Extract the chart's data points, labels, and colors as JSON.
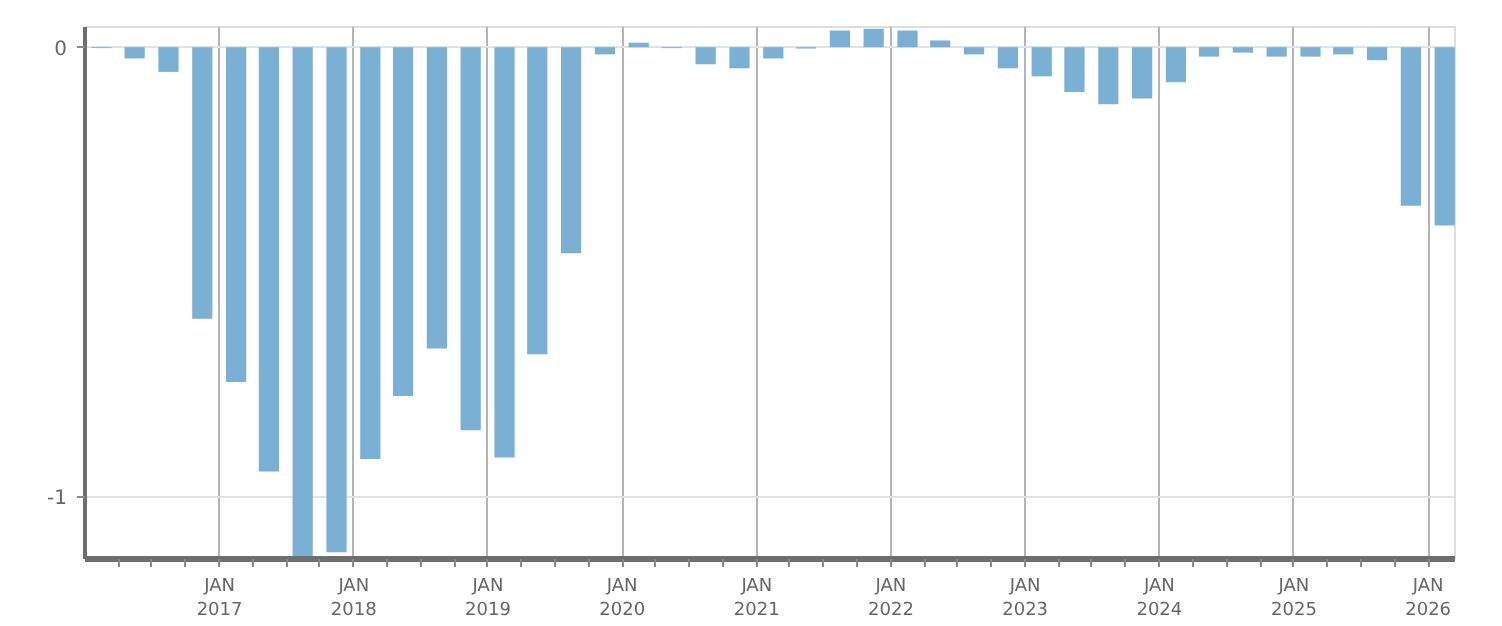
{
  "chart_data": {
    "type": "bar",
    "color": "#7ab0d3",
    "x": [
      "2016-02-15",
      "2016-05-15",
      "2016-08-15",
      "2016-11-15",
      "2017-02-15",
      "2017-05-15",
      "2017-08-15",
      "2017-11-15",
      "2018-02-15",
      "2018-05-15",
      "2018-08-15",
      "2018-11-15",
      "2019-02-15",
      "2019-05-15",
      "2019-08-15",
      "2019-11-15",
      "2020-02-15",
      "2020-05-15",
      "2020-08-15",
      "2020-11-15",
      "2021-02-15",
      "2021-05-15",
      "2021-08-15",
      "2021-11-15",
      "2022-02-15",
      "2022-05-15",
      "2022-08-15",
      "2022-11-15",
      "2023-02-15",
      "2023-05-15",
      "2023-08-15",
      "2023-11-15",
      "2024-02-15",
      "2024-05-15",
      "2024-08-15",
      "2024-11-15",
      "2025-02-15",
      "2025-05-15",
      "2025-08-15",
      "2025-11-15",
      "2026-02-15"
    ],
    "values": [
      -0.002,
      -0.025,
      -0.055,
      -0.605,
      -0.746,
      -0.945,
      -1.14,
      -1.125,
      -0.917,
      -0.777,
      -0.671,
      -0.853,
      -0.914,
      -0.684,
      -0.459,
      -0.016,
      0.01,
      -0.002,
      -0.038,
      -0.047,
      -0.025,
      -0.003,
      0.037,
      0.041,
      0.037,
      0.015,
      -0.016,
      -0.047,
      -0.065,
      -0.1,
      -0.127,
      -0.114,
      -0.078,
      -0.021,
      -0.012,
      -0.021,
      -0.021,
      -0.016,
      -0.029,
      -0.353,
      -0.397
    ],
    "xlim": [
      "2016-01-01",
      "2026-03-15"
    ],
    "ylim": [
      -1.14,
      0.045
    ],
    "yticks": [
      0,
      -1
    ],
    "xticks": [
      {
        "value": "2016-04-01",
        "label": null
      },
      {
        "value": "2016-07-01",
        "label": null
      },
      {
        "value": "2016-10-01",
        "label": null
      },
      {
        "value": "2017-01-01",
        "label": "JAN\n2017"
      },
      {
        "value": "2017-04-01",
        "label": null
      },
      {
        "value": "2017-07-01",
        "label": null
      },
      {
        "value": "2017-10-01",
        "label": null
      },
      {
        "value": "2018-01-01",
        "label": "JAN\n2018"
      },
      {
        "value": "2018-04-01",
        "label": null
      },
      {
        "value": "2018-07-01",
        "label": null
      },
      {
        "value": "2018-10-01",
        "label": null
      },
      {
        "value": "2019-01-01",
        "label": "JAN\n2019"
      },
      {
        "value": "2019-04-01",
        "label": null
      },
      {
        "value": "2019-07-01",
        "label": null
      },
      {
        "value": "2019-10-01",
        "label": null
      },
      {
        "value": "2020-01-01",
        "label": "JAN\n2020"
      },
      {
        "value": "2020-04-01",
        "label": null
      },
      {
        "value": "2020-07-01",
        "label": null
      },
      {
        "value": "2020-10-01",
        "label": null
      },
      {
        "value": "2021-01-01",
        "label": "JAN\n2021"
      },
      {
        "value": "2021-04-01",
        "label": null
      },
      {
        "value": "2021-07-01",
        "label": null
      },
      {
        "value": "2021-10-01",
        "label": null
      },
      {
        "value": "2022-01-01",
        "label": "JAN\n2022"
      },
      {
        "value": "2022-04-01",
        "label": null
      },
      {
        "value": "2022-07-01",
        "label": null
      },
      {
        "value": "2022-10-01",
        "label": null
      },
      {
        "value": "2023-01-01",
        "label": "JAN\n2023"
      },
      {
        "value": "2023-04-01",
        "label": null
      },
      {
        "value": "2023-07-01",
        "label": null
      },
      {
        "value": "2023-10-01",
        "label": null
      },
      {
        "value": "2024-01-01",
        "label": "JAN\n2024"
      },
      {
        "value": "2024-04-01",
        "label": null
      },
      {
        "value": "2024-07-01",
        "label": null
      },
      {
        "value": "2024-10-01",
        "label": null
      },
      {
        "value": "2025-01-01",
        "label": "JAN\n2025"
      },
      {
        "value": "2025-04-01",
        "label": null
      },
      {
        "value": "2025-07-01",
        "label": null
      },
      {
        "value": "2025-10-01",
        "label": null
      },
      {
        "value": "2026-01-01",
        "label": "JAN\n2026"
      }
    ],
    "grid": true
  }
}
